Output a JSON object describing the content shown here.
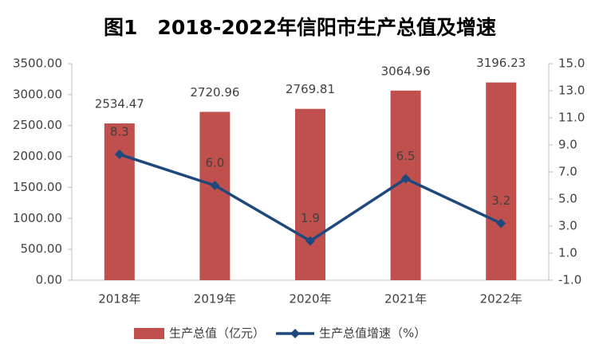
{
  "chart_data": {
    "type": "bar",
    "title": "图1　2018-2022年信阳市生产总值及增速",
    "categories": [
      "2018年",
      "2019年",
      "2020年",
      "2021年",
      "2022年"
    ],
    "series": [
      {
        "name": "生产总值（亿元）",
        "type": "bar",
        "color": "#c0504d",
        "values": [
          2534.47,
          2720.96,
          2769.81,
          3064.96,
          3196.23
        ]
      },
      {
        "name": "生产总值增速（%）",
        "type": "line",
        "axis": "y2",
        "color": "#1f497d",
        "values": [
          8.3,
          6.0,
          1.9,
          6.5,
          3.2
        ],
        "value_labels": [
          "8.3",
          "6.0",
          "1.9",
          "6.5",
          "3.2"
        ]
      }
    ],
    "ylim": [
      0,
      3500
    ],
    "yticks": [
      {
        "value": 0,
        "label": "0.00"
      },
      {
        "value": 500,
        "label": "500.00"
      },
      {
        "value": 1000,
        "label": "1000.00"
      },
      {
        "value": 1500,
        "label": "1500.00"
      },
      {
        "value": 2000,
        "label": "2000.00"
      },
      {
        "value": 2500,
        "label": "2500.00"
      },
      {
        "value": 3000,
        "label": "3000.00"
      },
      {
        "value": 3500,
        "label": "3500.00"
      }
    ],
    "y2lim": [
      -1,
      15
    ],
    "y2ticks": [
      {
        "value": -1,
        "label": "-1.0"
      },
      {
        "value": 1,
        "label": "1.0"
      },
      {
        "value": 3,
        "label": "3.0"
      },
      {
        "value": 5,
        "label": "5.0"
      },
      {
        "value": 7,
        "label": "7.0"
      },
      {
        "value": 9,
        "label": "9.0"
      },
      {
        "value": 11,
        "label": "11.0"
      },
      {
        "value": 13,
        "label": "13.0"
      },
      {
        "value": 15,
        "label": "15.0"
      }
    ],
    "grid": false
  }
}
